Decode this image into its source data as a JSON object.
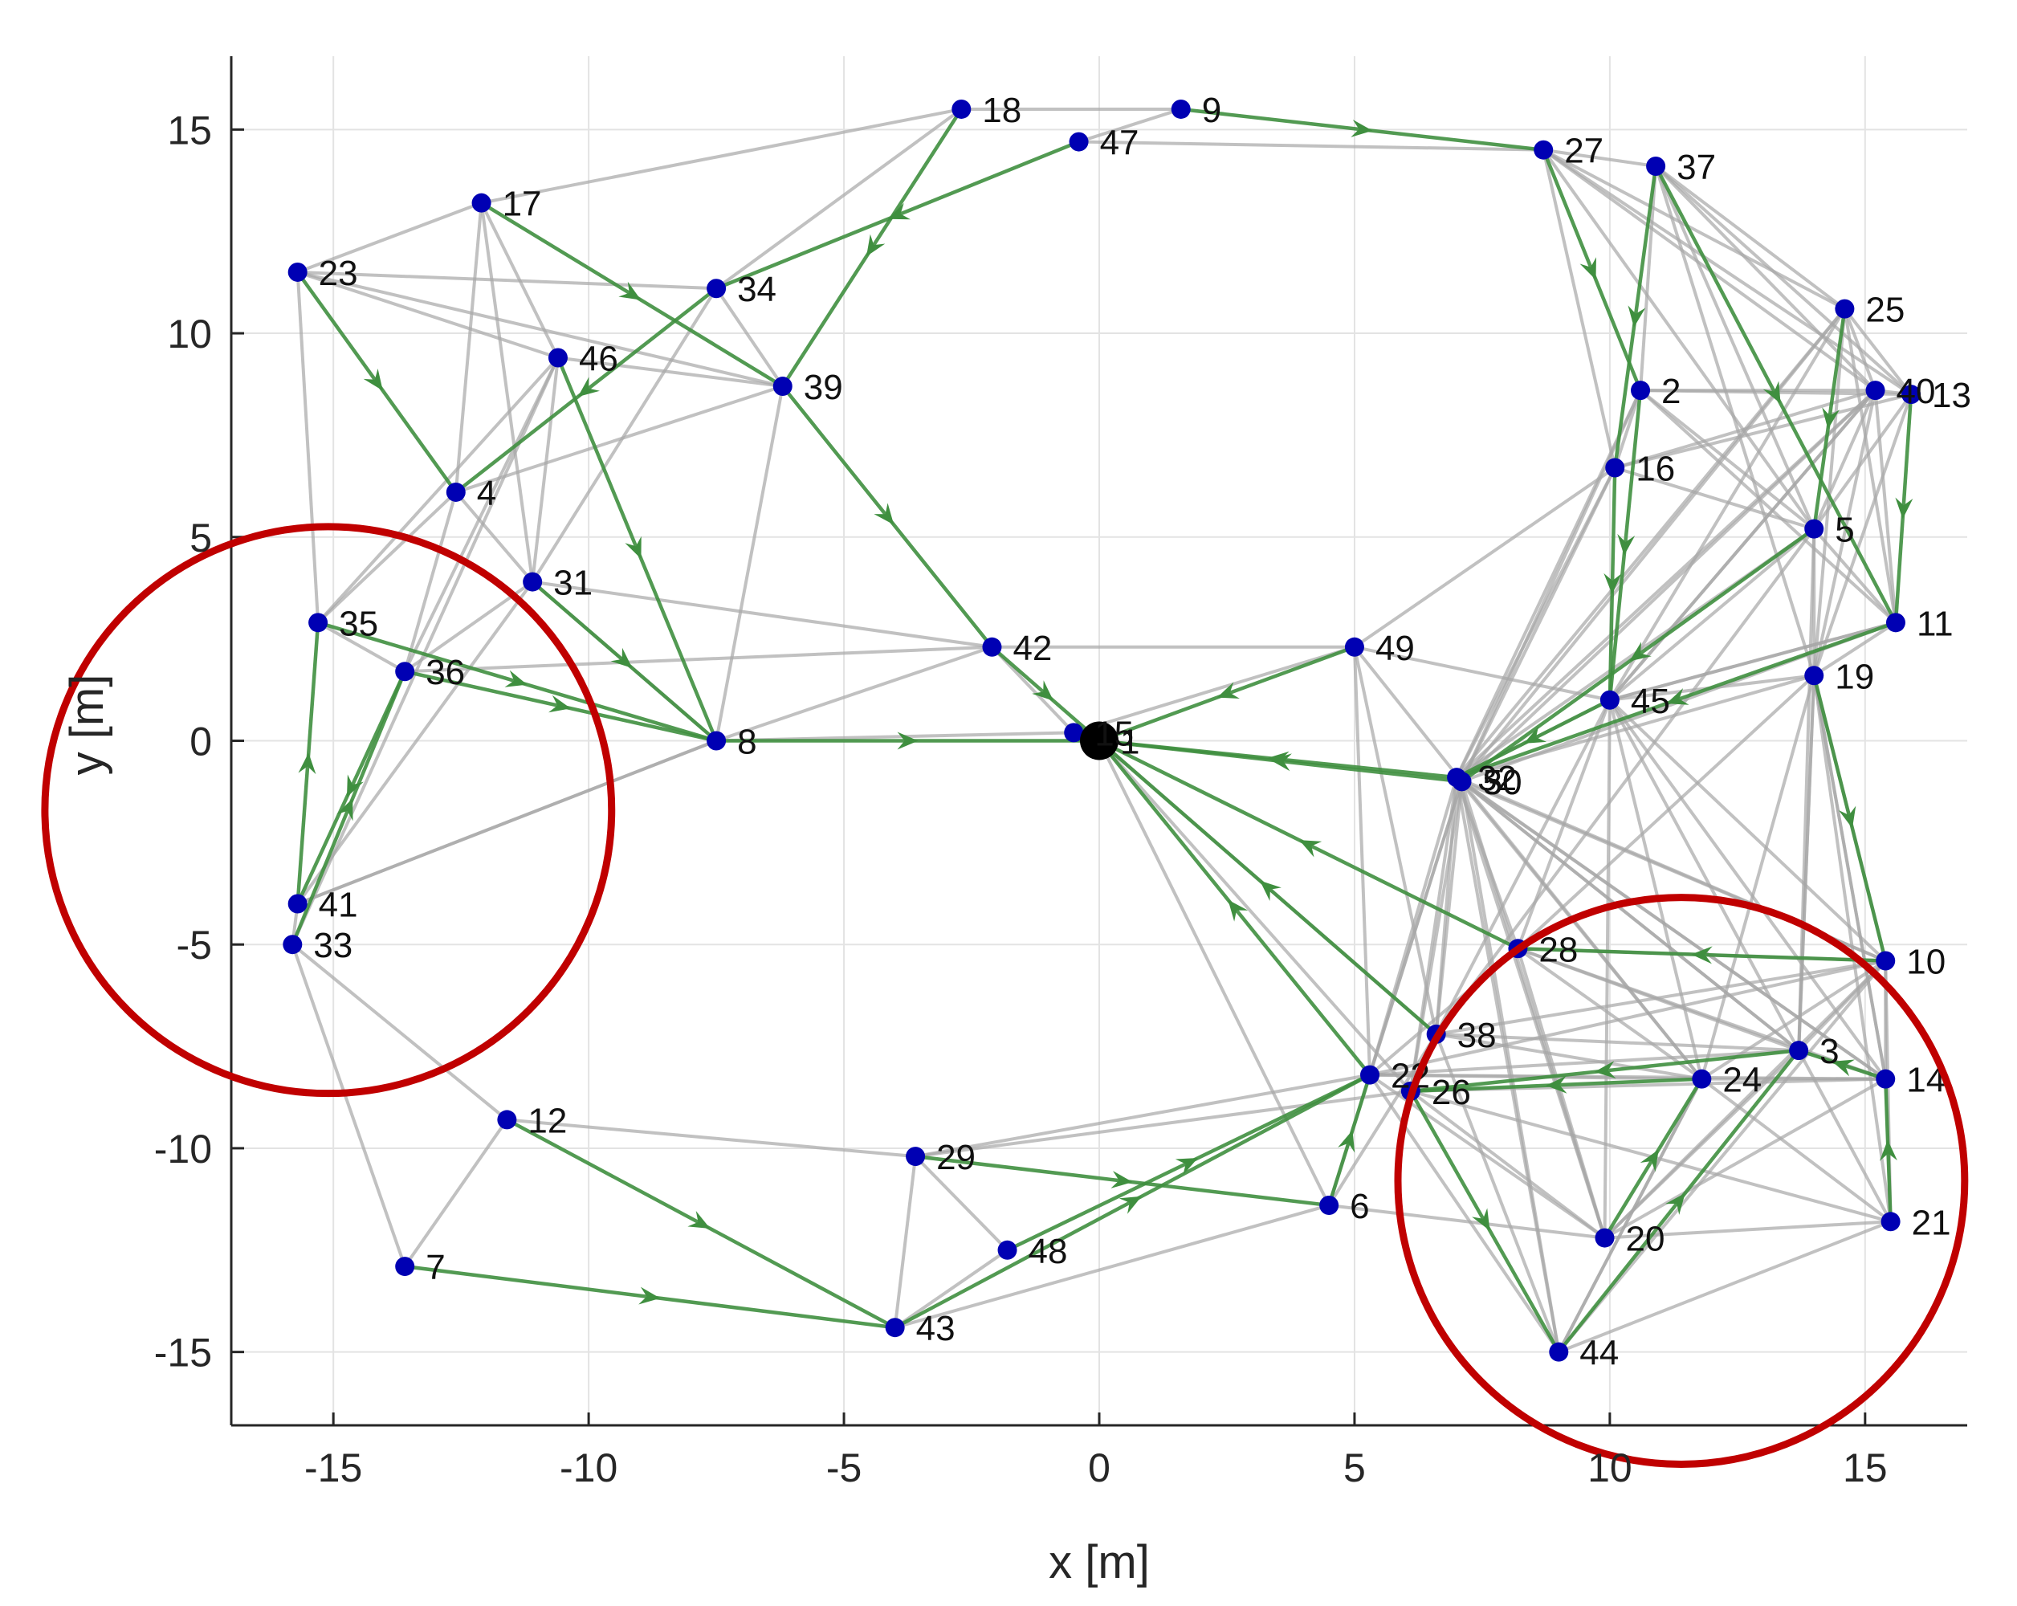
{
  "chart_data": {
    "type": "scatter",
    "xlabel": "x [m]",
    "ylabel": "y [m]",
    "xlim": [
      -17,
      17
    ],
    "ylim": [
      -16.8,
      16.8
    ],
    "xticks": [
      -15,
      -10,
      -5,
      0,
      5,
      10,
      15
    ],
    "yticks": [
      -15,
      -10,
      -5,
      0,
      5,
      10,
      15
    ],
    "grid": true,
    "colors": {
      "node": "#0000b3",
      "root": "#000000",
      "tree_edge": "#3f8f3f",
      "mesh_edge": "#a6a6a6",
      "highlight_circle": "#c00000"
    },
    "root": {
      "x": 0,
      "y": 0,
      "label": "1"
    },
    "nodes": [
      {
        "id": "2",
        "x": 10.6,
        "y": 8.6
      },
      {
        "id": "3",
        "x": 13.7,
        "y": -7.6
      },
      {
        "id": "4",
        "x": -12.6,
        "y": 6.1
      },
      {
        "id": "5",
        "x": 14.0,
        "y": 5.2
      },
      {
        "id": "6",
        "x": 4.5,
        "y": -11.4
      },
      {
        "id": "7",
        "x": -13.6,
        "y": -12.9
      },
      {
        "id": "8",
        "x": -7.5,
        "y": 0.0
      },
      {
        "id": "9",
        "x": 1.6,
        "y": 15.5
      },
      {
        "id": "10",
        "x": 15.4,
        "y": -5.4
      },
      {
        "id": "11",
        "x": 15.6,
        "y": 2.9
      },
      {
        "id": "12",
        "x": -11.6,
        "y": -9.3
      },
      {
        "id": "13",
        "x": 15.9,
        "y": 8.5
      },
      {
        "id": "14",
        "x": 15.4,
        "y": -8.3
      },
      {
        "id": "15",
        "x": -0.5,
        "y": 0.2
      },
      {
        "id": "16",
        "x": 10.1,
        "y": 6.7
      },
      {
        "id": "17",
        "x": -12.1,
        "y": 13.2
      },
      {
        "id": "18",
        "x": -2.7,
        "y": 15.5
      },
      {
        "id": "19",
        "x": 14.0,
        "y": 1.6
      },
      {
        "id": "20",
        "x": 9.9,
        "y": -12.2
      },
      {
        "id": "21",
        "x": 15.5,
        "y": -11.8
      },
      {
        "id": "22",
        "x": 5.3,
        "y": -8.2
      },
      {
        "id": "23",
        "x": -15.7,
        "y": 11.5
      },
      {
        "id": "24",
        "x": 11.8,
        "y": -8.3
      },
      {
        "id": "25",
        "x": 14.6,
        "y": 10.6
      },
      {
        "id": "26",
        "x": 6.1,
        "y": -8.6
      },
      {
        "id": "27",
        "x": 8.7,
        "y": 14.5
      },
      {
        "id": "28",
        "x": 8.2,
        "y": -5.1
      },
      {
        "id": "29",
        "x": -3.6,
        "y": -10.2
      },
      {
        "id": "30",
        "x": 7.1,
        "y": -1.0
      },
      {
        "id": "31",
        "x": -11.1,
        "y": 3.9
      },
      {
        "id": "32",
        "x": 7.0,
        "y": -0.9
      },
      {
        "id": "33",
        "x": -15.8,
        "y": -5.0
      },
      {
        "id": "34",
        "x": -7.5,
        "y": 11.1
      },
      {
        "id": "35",
        "x": -15.3,
        "y": 2.9
      },
      {
        "id": "36",
        "x": -13.6,
        "y": 1.7
      },
      {
        "id": "37",
        "x": 10.9,
        "y": 14.1
      },
      {
        "id": "38",
        "x": 6.6,
        "y": -7.2
      },
      {
        "id": "39",
        "x": -6.2,
        "y": 8.7
      },
      {
        "id": "40",
        "x": 15.2,
        "y": 8.6
      },
      {
        "id": "41",
        "x": -15.7,
        "y": -4.0
      },
      {
        "id": "42",
        "x": -2.1,
        "y": 2.3
      },
      {
        "id": "43",
        "x": -4.0,
        "y": -14.4
      },
      {
        "id": "44",
        "x": 9.0,
        "y": -15.0
      },
      {
        "id": "45",
        "x": 10.0,
        "y": 1.0
      },
      {
        "id": "46",
        "x": -10.6,
        "y": 9.4
      },
      {
        "id": "47",
        "x": -0.4,
        "y": 14.7
      },
      {
        "id": "48",
        "x": -1.8,
        "y": -12.5
      },
      {
        "id": "49",
        "x": 5.0,
        "y": 2.3
      },
      {
        "id": "50",
        "x": 7.1,
        "y": -1.0
      }
    ],
    "tree_edges": [
      [
        "8",
        "1"
      ],
      [
        "42",
        "1"
      ],
      [
        "15",
        "1"
      ],
      [
        "49",
        "1"
      ],
      [
        "30",
        "1"
      ],
      [
        "32",
        "1"
      ],
      [
        "28",
        "1"
      ],
      [
        "38",
        "1"
      ],
      [
        "22",
        "1"
      ],
      [
        "35",
        "8"
      ],
      [
        "36",
        "8"
      ],
      [
        "31",
        "8"
      ],
      [
        "46",
        "8"
      ],
      [
        "39",
        "42"
      ],
      [
        "17",
        "39"
      ],
      [
        "18",
        "39"
      ],
      [
        "47",
        "34"
      ],
      [
        "34",
        "4"
      ],
      [
        "23",
        "4"
      ],
      [
        "41",
        "35"
      ],
      [
        "33",
        "36"
      ],
      [
        "36",
        "41"
      ],
      [
        "7",
        "43"
      ],
      [
        "12",
        "43"
      ],
      [
        "43",
        "22"
      ],
      [
        "48",
        "22"
      ],
      [
        "29",
        "6"
      ],
      [
        "6",
        "22"
      ],
      [
        "9",
        "27"
      ],
      [
        "27",
        "2"
      ],
      [
        "2",
        "45"
      ],
      [
        "37",
        "16"
      ],
      [
        "16",
        "45"
      ],
      [
        "37",
        "11"
      ],
      [
        "25",
        "5"
      ],
      [
        "13",
        "11"
      ],
      [
        "11",
        "32"
      ],
      [
        "45",
        "32"
      ],
      [
        "5",
        "30"
      ],
      [
        "19",
        "10"
      ],
      [
        "10",
        "28"
      ],
      [
        "14",
        "3"
      ],
      [
        "3",
        "26"
      ],
      [
        "21",
        "14"
      ],
      [
        "24",
        "26"
      ],
      [
        "20",
        "24"
      ],
      [
        "44",
        "3"
      ],
      [
        "26",
        "44"
      ]
    ],
    "mesh_edges": [
      [
        "18",
        "9"
      ],
      [
        "18",
        "17"
      ],
      [
        "9",
        "47"
      ],
      [
        "47",
        "27"
      ],
      [
        "18",
        "34"
      ],
      [
        "17",
        "23"
      ],
      [
        "17",
        "46"
      ],
      [
        "17",
        "31"
      ],
      [
        "17",
        "4"
      ],
      [
        "23",
        "46"
      ],
      [
        "23",
        "39"
      ],
      [
        "23",
        "35"
      ],
      [
        "23",
        "34"
      ],
      [
        "34",
        "39"
      ],
      [
        "34",
        "31"
      ],
      [
        "46",
        "39"
      ],
      [
        "46",
        "31"
      ],
      [
        "46",
        "36"
      ],
      [
        "46",
        "35"
      ],
      [
        "4",
        "36"
      ],
      [
        "4",
        "35"
      ],
      [
        "4",
        "31"
      ],
      [
        "4",
        "39"
      ],
      [
        "31",
        "36"
      ],
      [
        "31",
        "42"
      ],
      [
        "31",
        "8"
      ],
      [
        "35",
        "36"
      ],
      [
        "39",
        "8"
      ],
      [
        "36",
        "42"
      ],
      [
        "8",
        "42"
      ],
      [
        "8",
        "15"
      ],
      [
        "42",
        "49"
      ],
      [
        "8",
        "41"
      ],
      [
        "41",
        "8"
      ],
      [
        "33",
        "12"
      ],
      [
        "33",
        "7"
      ],
      [
        "41",
        "33"
      ],
      [
        "12",
        "7"
      ],
      [
        "12",
        "29"
      ],
      [
        "29",
        "43"
      ],
      [
        "29",
        "48"
      ],
      [
        "29",
        "22"
      ],
      [
        "29",
        "26"
      ],
      [
        "48",
        "43"
      ],
      [
        "43",
        "6"
      ],
      [
        "6",
        "20"
      ],
      [
        "6",
        "38"
      ],
      [
        "22",
        "24"
      ],
      [
        "22",
        "3"
      ],
      [
        "22",
        "14"
      ],
      [
        "22",
        "10"
      ],
      [
        "22",
        "28"
      ],
      [
        "22",
        "20"
      ],
      [
        "22",
        "44"
      ],
      [
        "26",
        "14"
      ],
      [
        "26",
        "21"
      ],
      [
        "26",
        "20"
      ],
      [
        "38",
        "3"
      ],
      [
        "38",
        "10"
      ],
      [
        "38",
        "24"
      ],
      [
        "38",
        "44"
      ],
      [
        "38",
        "45"
      ],
      [
        "38",
        "5"
      ],
      [
        "24",
        "14"
      ],
      [
        "24",
        "10"
      ],
      [
        "24",
        "21"
      ],
      [
        "24",
        "44"
      ],
      [
        "3",
        "10"
      ],
      [
        "3",
        "21"
      ],
      [
        "3",
        "19"
      ],
      [
        "3",
        "20"
      ],
      [
        "20",
        "21"
      ],
      [
        "20",
        "14"
      ],
      [
        "20",
        "10"
      ],
      [
        "44",
        "21"
      ],
      [
        "44",
        "10"
      ],
      [
        "44",
        "24"
      ],
      [
        "10",
        "14"
      ],
      [
        "10",
        "21"
      ],
      [
        "14",
        "19"
      ],
      [
        "14",
        "21"
      ],
      [
        "28",
        "45"
      ],
      [
        "28",
        "3"
      ],
      [
        "28",
        "24"
      ],
      [
        "28",
        "20"
      ],
      [
        "28",
        "14"
      ],
      [
        "28",
        "19"
      ],
      [
        "28",
        "10"
      ],
      [
        "32",
        "24"
      ],
      [
        "32",
        "20"
      ],
      [
        "32",
        "3"
      ],
      [
        "32",
        "14"
      ],
      [
        "32",
        "10"
      ],
      [
        "32",
        "28"
      ],
      [
        "32",
        "45"
      ],
      [
        "32",
        "19"
      ],
      [
        "32",
        "5"
      ],
      [
        "32",
        "16"
      ],
      [
        "32",
        "2"
      ],
      [
        "32",
        "40"
      ],
      [
        "32",
        "25"
      ],
      [
        "32",
        "38"
      ],
      [
        "32",
        "22"
      ],
      [
        "32",
        "26"
      ],
      [
        "32",
        "44"
      ],
      [
        "49",
        "22"
      ],
      [
        "49",
        "38"
      ],
      [
        "49",
        "16"
      ],
      [
        "49",
        "45"
      ],
      [
        "49",
        "30"
      ],
      [
        "45",
        "19"
      ],
      [
        "45",
        "10"
      ],
      [
        "45",
        "3"
      ],
      [
        "45",
        "24"
      ],
      [
        "45",
        "20"
      ],
      [
        "45",
        "14"
      ],
      [
        "45",
        "5"
      ],
      [
        "45",
        "11"
      ],
      [
        "45",
        "25"
      ],
      [
        "45",
        "40"
      ],
      [
        "16",
        "2"
      ],
      [
        "16",
        "5"
      ],
      [
        "16",
        "40"
      ],
      [
        "16",
        "13"
      ],
      [
        "16",
        "27"
      ],
      [
        "2",
        "40"
      ],
      [
        "2",
        "13"
      ],
      [
        "2",
        "37"
      ],
      [
        "2",
        "5"
      ],
      [
        "2",
        "11"
      ],
      [
        "27",
        "37"
      ],
      [
        "27",
        "25"
      ],
      [
        "27",
        "40"
      ],
      [
        "27",
        "13"
      ],
      [
        "27",
        "5"
      ],
      [
        "37",
        "25"
      ],
      [
        "37",
        "40"
      ],
      [
        "37",
        "13"
      ],
      [
        "37",
        "5"
      ],
      [
        "37",
        "19"
      ],
      [
        "25",
        "40"
      ],
      [
        "25",
        "13"
      ],
      [
        "25",
        "11"
      ],
      [
        "25",
        "19"
      ],
      [
        "40",
        "13"
      ],
      [
        "40",
        "5"
      ],
      [
        "40",
        "11"
      ],
      [
        "40",
        "19"
      ],
      [
        "40",
        "45"
      ],
      [
        "13",
        "5"
      ],
      [
        "13",
        "19"
      ],
      [
        "5",
        "11"
      ],
      [
        "5",
        "19"
      ],
      [
        "11",
        "19"
      ],
      [
        "11",
        "45"
      ],
      [
        "11",
        "30"
      ],
      [
        "19",
        "10"
      ],
      [
        "19",
        "3"
      ],
      [
        "19",
        "24"
      ],
      [
        "19",
        "14"
      ],
      [
        "19",
        "21"
      ],
      [
        "5",
        "3"
      ],
      [
        "30",
        "22"
      ],
      [
        "30",
        "38"
      ],
      [
        "30",
        "26"
      ],
      [
        "30",
        "6"
      ],
      [
        "30",
        "20"
      ],
      [
        "30",
        "24"
      ],
      [
        "30",
        "3"
      ],
      [
        "30",
        "10"
      ],
      [
        "30",
        "14"
      ],
      [
        "30",
        "44"
      ],
      [
        "30",
        "16"
      ],
      [
        "30",
        "2"
      ],
      [
        "30",
        "40"
      ],
      [
        "30",
        "25"
      ],
      [
        "42",
        "15"
      ],
      [
        "15",
        "49"
      ],
      [
        "1",
        "38"
      ],
      [
        "1",
        "26"
      ],
      [
        "1",
        "6"
      ],
      [
        "41",
        "31"
      ],
      [
        "33",
        "46"
      ]
    ],
    "highlight_circles": [
      {
        "cx": -15.1,
        "cy": -1.7,
        "r": 5.55
      },
      {
        "cx": 11.4,
        "cy": -10.8,
        "r": 5.55
      }
    ]
  }
}
